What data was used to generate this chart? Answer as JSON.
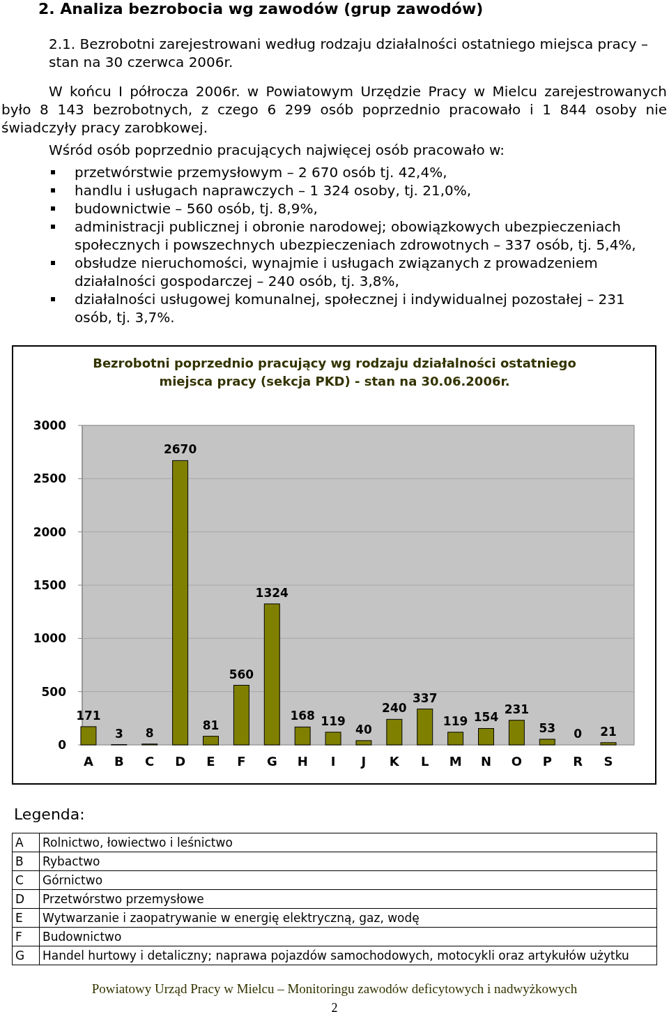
{
  "chart_data": {
    "type": "bar",
    "title": "Bezrobotni poprzednio pracujący wg rodzaju działalności ostatniego miejsca pracy (sekcja PKD) - stan na 30.06.2006r.",
    "categories": [
      "A",
      "B",
      "C",
      "D",
      "E",
      "F",
      "G",
      "H",
      "I",
      "J",
      "K",
      "L",
      "M",
      "N",
      "O",
      "P",
      "R",
      "S"
    ],
    "values": [
      171,
      3,
      8,
      2670,
      81,
      560,
      1324,
      168,
      119,
      40,
      240,
      337,
      119,
      154,
      231,
      53,
      0,
      21
    ],
    "color": "#808000",
    "ylim": [
      0,
      3000
    ],
    "yticks": [
      0,
      500,
      1000,
      1500,
      2000,
      2500,
      3000
    ],
    "grid": "y",
    "data_labels": true,
    "annotations": [
      "2. Analiza bezrobocia wg zawodów (grup zawodów)",
      "2.1. Bezrobotni zarejestrowani według rodzaju działalności ostatniego miejsca pracy – stan na 30 czerwca 2006r.",
      "W końcu I półrocza 2006r. w Powiatowym Urzędzie Pracy w Mielcu zarejestrowanych było 8 143 bezrobotnych, z czego 6 299 osób poprzednio pracowało i 1 844 osoby nie świadczyły pracy zarobkowej.",
      "Wśród osób poprzednio pracujących najwięcej osób pracowało w:",
      "przetwórstwie przemysłowym – 2 670 osób tj. 42,4%,",
      "handlu i usługach naprawczych – 1 324 osoby, tj. 21,0%,",
      "budownictwie – 560 osób, tj. 8,9%,",
      "administracji publicznej i obronie narodowej; obowiązkowych ubezpieczeniach społecznych i powszechnych ubezpieczeniach zdrowotnych – 337 osób, tj. 5,4%,",
      "obsłudze nieruchomości, wynajmie i usługach związanych z prowadzeniem działalności gospodarczej – 240 osób, tj. 3,8%,",
      "działalności usługowej komunalnej, społecznej i indywidualnej pozostałej – 231 osób, tj. 3,7%.",
      "Legenda:",
      "Rolnictwo, łowiectwo i leśnictwo",
      "Rybactwo",
      "Górnictwo",
      "Przetwórstwo przemysłowe",
      "Wytwarzanie i zaopatrywanie w energię elektryczną, gaz, wodę",
      "Budownictwo",
      "Handel hurtowy i detaliczny; naprawa pojazdów samochodowych, motocykli oraz artykułów użytku",
      "Powiatowy Urząd Pracy w Mielcu – Monitoringu zawodów deficytowych i nadwyżkowych",
      "2"
    ]
  }
}
